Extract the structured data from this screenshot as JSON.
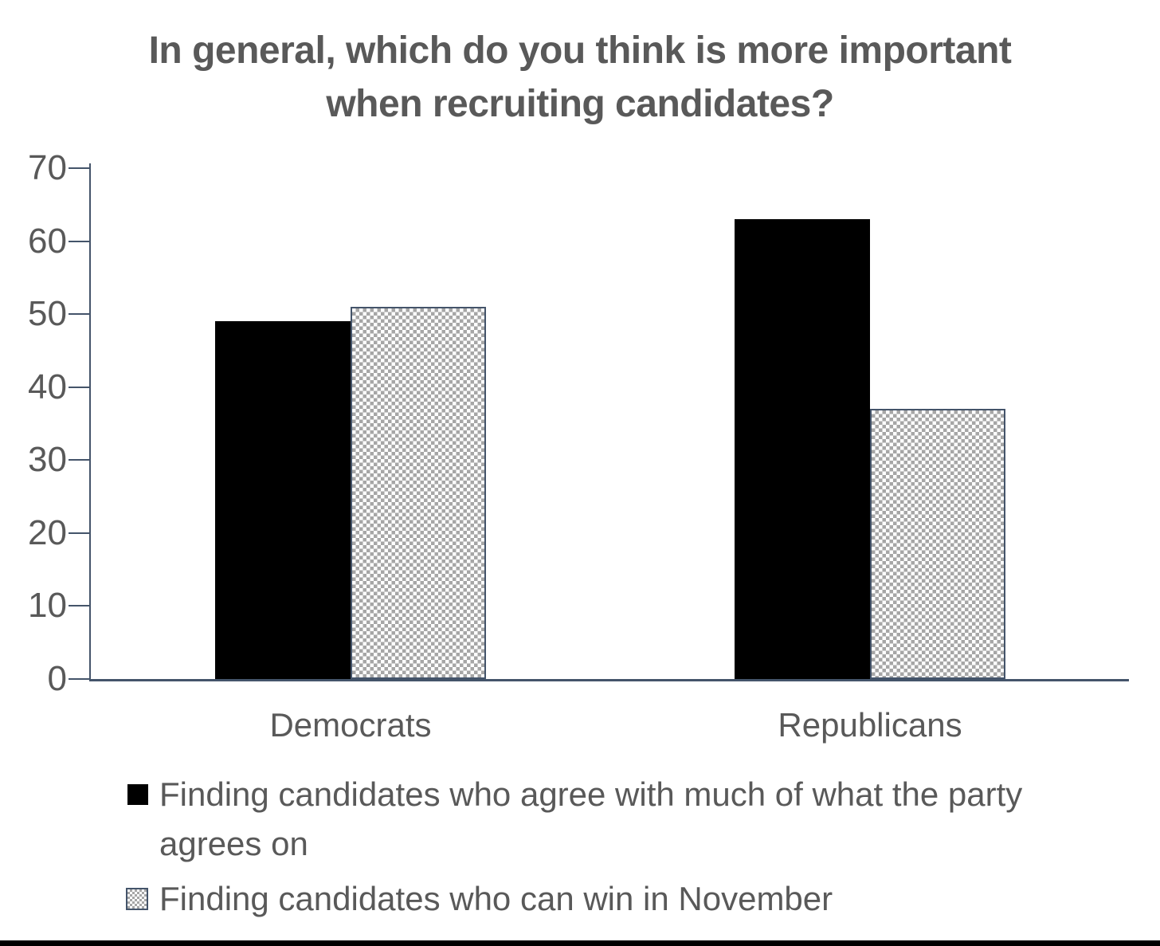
{
  "title": {
    "line1": "In general, which do you think is more important",
    "line2": "when recruiting candidates?"
  },
  "chart_data": {
    "type": "bar",
    "title": "In general, which do you think is more important when recruiting candidates?",
    "categories": [
      "Democrats",
      "Republicans"
    ],
    "series": [
      {
        "name": "Finding candidates who agree with much of what the party agrees on",
        "pattern": "solid-black",
        "values": [
          49,
          63
        ]
      },
      {
        "name": "Finding candidates who can win in November",
        "pattern": "checkered-gray",
        "values": [
          51,
          37
        ]
      }
    ],
    "ylim": [
      0,
      70
    ],
    "yticks": [
      0,
      10,
      20,
      30,
      40,
      50,
      60,
      70
    ],
    "xlabel": "",
    "ylabel": "",
    "grid": false,
    "legend_position": "bottom"
  },
  "legend": {
    "items": [
      {
        "swatch": "solid-black",
        "lines": [
          "Finding candidates who agree with much of what the party",
          "agrees on"
        ]
      },
      {
        "swatch": "checkered-gray",
        "lines": [
          "Finding candidates who can win in November"
        ]
      }
    ]
  },
  "colors": {
    "bar_solid": "#000000",
    "pattern_fill": "#A6A6A6",
    "axis": "#44546A",
    "text": "#595959"
  }
}
